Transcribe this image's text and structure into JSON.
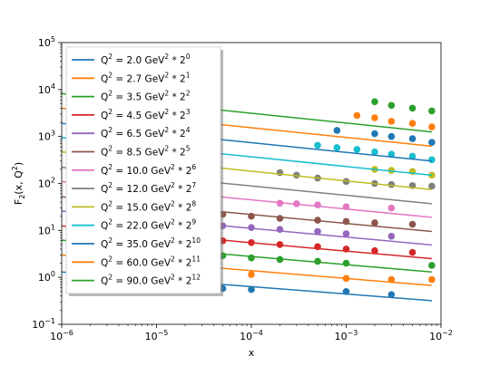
{
  "chart_data": {
    "type": "line",
    "xlabel": "x",
    "ylabel": "F",
    "ylabel_sub": "2",
    "ylabel_args": "(x, Q",
    "ylabel_args_sup": "2",
    "ylabel_close": ")",
    "x_scale": "log",
    "y_scale": "log",
    "xlim": [
      1e-06,
      0.01
    ],
    "ylim": [
      0.1,
      100000
    ],
    "x_ticks": [
      {
        "value": 1e-06,
        "base": "10",
        "exp": "−6"
      },
      {
        "value": 1e-05,
        "base": "10",
        "exp": "−5"
      },
      {
        "value": 0.0001,
        "base": "10",
        "exp": "−4"
      },
      {
        "value": 0.001,
        "base": "10",
        "exp": "−3"
      },
      {
        "value": 0.01,
        "base": "10",
        "exp": "−2"
      }
    ],
    "y_ticks": [
      {
        "value": 0.1,
        "base": "10",
        "exp": "−1"
      },
      {
        "value": 1,
        "base": "10",
        "exp": "0"
      },
      {
        "value": 10,
        "base": "10",
        "exp": "1"
      },
      {
        "value": 100,
        "base": "10",
        "exp": "2"
      },
      {
        "value": 1000,
        "base": "10",
        "exp": "3"
      },
      {
        "value": 10000,
        "base": "10",
        "exp": "4"
      },
      {
        "value": 100000,
        "base": "10",
        "exp": "5"
      }
    ],
    "grid": false,
    "legend_position": "top-left",
    "series": [
      {
        "name": "Q² = 2.0 GeV² * 2⁰",
        "label_main": "Q",
        "label_q": "2",
        "label_value": " = 2.0 GeV",
        "label_gev": "2",
        "label_times": " * 2",
        "label_exp": "0",
        "color": "#1f77b4",
        "line": [
          [
            1e-06,
            1.3
          ],
          [
            0.008,
            0.32
          ]
        ],
        "points": [
          [
            5e-06,
            0.78
          ],
          [
            8e-06,
            0.75
          ],
          [
            1.3e-05,
            0.7
          ],
          [
            2e-05,
            0.67
          ],
          [
            3e-05,
            0.62
          ],
          [
            5e-05,
            0.58
          ],
          [
            0.0001,
            0.55
          ],
          [
            0.001,
            0.5
          ],
          [
            0.003,
            0.43
          ]
        ]
      },
      {
        "name": "Q² = 2.7 GeV² * 2¹",
        "label_main": "Q",
        "label_q": "2",
        "label_value": " = 2.7 GeV",
        "label_gev": "2",
        "label_times": " * 2",
        "label_exp": "1",
        "color": "#ff7f0e",
        "line": [
          [
            1e-06,
            3.0
          ],
          [
            0.008,
            0.67
          ]
        ],
        "points": [
          [
            5e-06,
            1.7
          ],
          [
            2e-05,
            1.4
          ],
          [
            0.0001,
            1.15
          ],
          [
            0.001,
            0.95
          ],
          [
            0.003,
            0.9
          ],
          [
            0.008,
            0.9
          ]
        ]
      },
      {
        "name": "Q² = 3.5 GeV² * 2²",
        "label_main": "Q",
        "label_q": "2",
        "label_value": " = 3.5 GeV",
        "label_gev": "2",
        "label_times": " * 2",
        "label_exp": "2",
        "color": "#2ca02c",
        "line": [
          [
            1e-06,
            6.2
          ],
          [
            0.008,
            1.3
          ]
        ],
        "points": [
          [
            8e-06,
            3.8
          ],
          [
            1.3e-05,
            3.5
          ],
          [
            2e-05,
            3.3
          ],
          [
            3e-05,
            3.1
          ],
          [
            5e-05,
            2.9
          ],
          [
            0.0001,
            2.6
          ],
          [
            0.0002,
            2.4
          ],
          [
            0.0005,
            2.2
          ],
          [
            0.001,
            2.0
          ],
          [
            0.008,
            1.8
          ]
        ]
      },
      {
        "name": "Q² = 4.5 GeV² * 2³",
        "label_main": "Q",
        "label_q": "2",
        "label_value": " = 4.5 GeV",
        "label_gev": "2",
        "label_times": " * 2",
        "label_exp": "3",
        "color": "#d62728",
        "line": [
          [
            1e-06,
            12.5
          ],
          [
            0.008,
            2.5
          ]
        ],
        "points": [
          [
            5e-06,
            8.5
          ],
          [
            1e-05,
            7.5
          ],
          [
            2e-05,
            6.8
          ],
          [
            5e-05,
            6.0
          ],
          [
            0.0001,
            5.5
          ],
          [
            0.0002,
            5.0
          ],
          [
            0.0005,
            4.5
          ],
          [
            0.001,
            4.0
          ],
          [
            0.002,
            3.7
          ],
          [
            0.005,
            3.4
          ]
        ]
      },
      {
        "name": "Q² = 6.5 GeV² * 2⁴",
        "label_main": "Q",
        "label_q": "2",
        "label_value": " = 6.5 GeV",
        "label_gev": "2",
        "label_times": " * 2",
        "label_exp": "4",
        "color": "#9467bd",
        "line": [
          [
            1e-06,
            26
          ],
          [
            0.008,
            4.9
          ]
        ],
        "points": [
          [
            5e-06,
            17
          ],
          [
            1e-05,
            15.5
          ],
          [
            2e-05,
            14.5
          ],
          [
            5e-05,
            12.5
          ],
          [
            0.0001,
            11.5
          ],
          [
            0.0002,
            10.5
          ],
          [
            0.0005,
            9.5
          ],
          [
            0.001,
            8.5
          ],
          [
            0.003,
            7.5
          ]
        ]
      },
      {
        "name": "Q² = 8.5 GeV² * 2⁵",
        "label_main": "Q",
        "label_q": "2",
        "label_value": " = 8.5 GeV",
        "label_gev": "2",
        "label_times": " * 2",
        "label_exp": "5",
        "color": "#8c564b",
        "line": [
          [
            1e-06,
            52
          ],
          [
            0.008,
            9.5
          ]
        ],
        "points": [
          [
            3e-05,
            24
          ],
          [
            5e-05,
            22
          ],
          [
            0.0001,
            20
          ],
          [
            0.0002,
            18
          ],
          [
            0.0005,
            16.5
          ],
          [
            0.001,
            15.5
          ],
          [
            0.002,
            14.5
          ],
          [
            0.005,
            13.5
          ]
        ]
      },
      {
        "name": "Q² = 10.0 GeV² * 2⁶",
        "label_main": "Q",
        "label_q": "2",
        "label_value": " = 10.0 GeV",
        "label_gev": "2",
        "label_times": " * 2",
        "label_exp": "6",
        "color": "#e377c2",
        "line": [
          [
            1e-06,
            110
          ],
          [
            0.008,
            19
          ]
        ],
        "points": [
          [
            5e-06,
            30
          ],
          [
            0.0002,
            38
          ],
          [
            0.0003,
            37
          ],
          [
            0.0005,
            35
          ],
          [
            0.001,
            32
          ],
          [
            0.003,
            30
          ]
        ]
      },
      {
        "name": "Q² = 12.0 GeV² * 2⁷",
        "label_main": "Q",
        "label_q": "2",
        "label_value": " = 12.0 GeV",
        "label_gev": "2",
        "label_times": " * 2",
        "label_exp": "7",
        "color": "#7f7f7f",
        "line": [
          [
            1e-06,
            220
          ],
          [
            0.008,
            37
          ]
        ],
        "points": [
          [
            0.0002,
            170
          ],
          [
            0.0003,
            150
          ],
          [
            0.0005,
            130
          ],
          [
            0.001,
            110
          ],
          [
            0.002,
            100
          ],
          [
            0.003,
            95
          ],
          [
            0.005,
            90
          ],
          [
            0.008,
            88
          ]
        ]
      },
      {
        "name": "Q² = 15.0 GeV² * 2⁸",
        "label_main": "Q",
        "label_q": "2",
        "label_value": " = 15.0 GeV",
        "label_gev": "2",
        "label_times": " * 2",
        "label_exp": "8",
        "color": "#bcbd22",
        "line": [
          [
            1e-06,
            470
          ],
          [
            0.008,
            74
          ]
        ],
        "points": [
          [
            0.002,
            200
          ],
          [
            0.003,
            190
          ],
          [
            0.005,
            180
          ],
          [
            0.008,
            150
          ]
        ]
      },
      {
        "name": "Q² = 22.0 GeV² * 2⁹",
        "label_main": "Q",
        "label_q": "2",
        "label_value": " = 22.0 GeV",
        "label_gev": "2",
        "label_times": " * 2",
        "label_exp": "9",
        "color": "#17becf",
        "line": [
          [
            1e-06,
            950
          ],
          [
            0.008,
            150
          ]
        ],
        "points": [
          [
            0.0005,
            650
          ],
          [
            0.0008,
            580
          ],
          [
            0.0013,
            530
          ],
          [
            0.002,
            470
          ],
          [
            0.003,
            420
          ],
          [
            0.005,
            380
          ],
          [
            0.008,
            320
          ]
        ]
      },
      {
        "name": "Q² = 35.0 GeV² * 2¹⁰",
        "label_main": "Q",
        "label_q": "2",
        "label_value": " = 35.0 GeV",
        "label_gev": "2",
        "label_times": " * 2",
        "label_exp": "10",
        "color": "#1f77b4",
        "line": [
          [
            1e-06,
            1900
          ],
          [
            0.008,
            300
          ]
        ],
        "points": [
          [
            0.0008,
            1350
          ],
          [
            0.002,
            1150
          ],
          [
            0.003,
            1000
          ],
          [
            0.005,
            900
          ],
          [
            0.008,
            750
          ]
        ]
      },
      {
        "name": "Q² = 60.0 GeV² * 2¹¹",
        "label_main": "Q",
        "label_q": "2",
        "label_value": " = 60.0 GeV",
        "label_gev": "2",
        "label_times": " * 2",
        "label_exp": "11",
        "color": "#ff7f0e",
        "line": [
          [
            1e-06,
            4000
          ],
          [
            0.008,
            620
          ]
        ],
        "points": [
          [
            0.0013,
            2800
          ],
          [
            0.002,
            2500
          ],
          [
            0.003,
            2100
          ],
          [
            0.005,
            1900
          ],
          [
            0.008,
            1600
          ]
        ]
      },
      {
        "name": "Q² = 90.0 GeV² * 2¹²",
        "label_main": "Q",
        "label_q": "2",
        "label_value": " = 90.0 GeV",
        "label_gev": "2",
        "label_times": " * 2",
        "label_exp": "12",
        "color": "#2ca02c",
        "line": [
          [
            1e-06,
            8200
          ],
          [
            0.008,
            1250
          ]
        ],
        "points": [
          [
            0.002,
            5500
          ],
          [
            0.003,
            4600
          ],
          [
            0.005,
            4000
          ],
          [
            0.008,
            3500
          ]
        ]
      }
    ]
  }
}
